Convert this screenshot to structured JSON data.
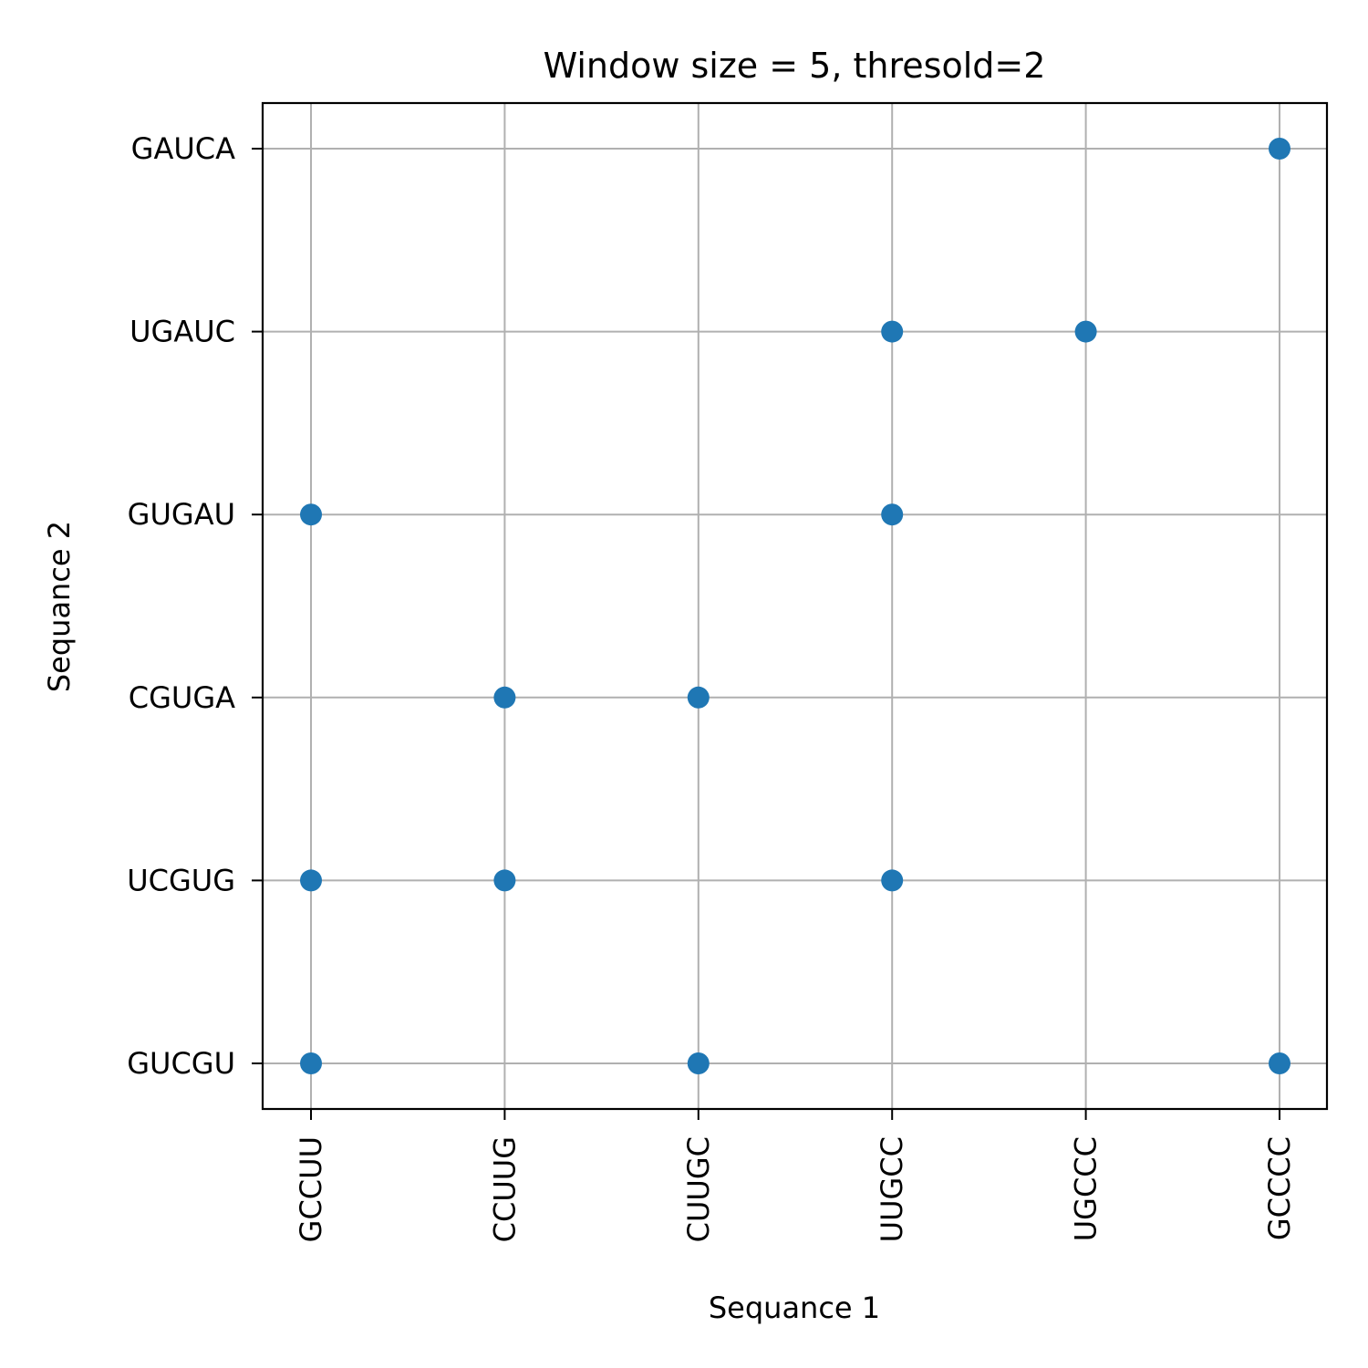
{
  "chart_data": {
    "type": "scatter",
    "title": "Window size = 5, thresold=2",
    "xlabel": "Sequance 1",
    "ylabel": "Sequance 2",
    "x_categories": [
      "GCCUU",
      "CCUUG",
      "CUUGC",
      "UUGCC",
      "UGCCC",
      "GCCCC"
    ],
    "y_categories": [
      "GUCGU",
      "UCGUG",
      "CGUGA",
      "GUGAU",
      "UGAUC",
      "GAUCA"
    ],
    "points": [
      {
        "x": "GCCUU",
        "y": "GUCGU"
      },
      {
        "x": "CUUGC",
        "y": "GUCGU"
      },
      {
        "x": "GCCCC",
        "y": "GUCGU"
      },
      {
        "x": "GCCUU",
        "y": "UCGUG"
      },
      {
        "x": "CCUUG",
        "y": "UCGUG"
      },
      {
        "x": "UUGCC",
        "y": "UCGUG"
      },
      {
        "x": "CCUUG",
        "y": "CGUGA"
      },
      {
        "x": "CUUGC",
        "y": "CGUGA"
      },
      {
        "x": "GCCUU",
        "y": "GUGAU"
      },
      {
        "x": "UUGCC",
        "y": "GUGAU"
      },
      {
        "x": "UUGCC",
        "y": "UGAUC"
      },
      {
        "x": "UGCCC",
        "y": "UGAUC"
      },
      {
        "x": "GCCCC",
        "y": "GAUCA"
      }
    ],
    "grid": true,
    "x_tick_rotation_deg": 90,
    "marker_color": "#1f77b4"
  }
}
